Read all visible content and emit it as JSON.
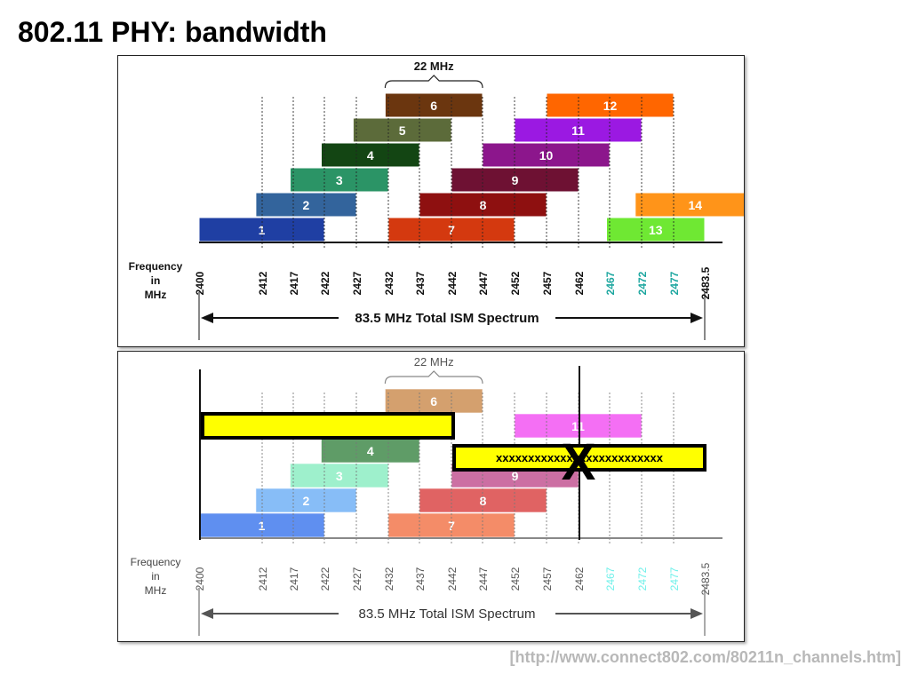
{
  "slide": {
    "title": "802.11 PHY: bandwidth",
    "source": "[http://www.connect802.com/80211n_channels.htm]"
  },
  "diagram": {
    "bandwidth_label": "22 MHz",
    "frequency_label_lines": [
      "Frequency",
      "in",
      "MHz"
    ],
    "spectrum_label": "83.5 MHz Total ISM Spectrum",
    "center_frequencies": [
      "2400",
      "2412",
      "2417",
      "2422",
      "2427",
      "2432",
      "2437",
      "2442",
      "2447",
      "2452",
      "2457",
      "2462",
      "2467",
      "2472",
      "2477",
      "2483.5"
    ],
    "highlight_ticks": [
      "2467",
      "2472",
      "2477"
    ],
    "highlight_tick_color": "#1ea7a0",
    "channels": [
      {
        "label": "1",
        "color": "#1f3fa3"
      },
      {
        "label": "2",
        "color": "#33649c"
      },
      {
        "label": "3",
        "color": "#2b9466"
      },
      {
        "label": "4",
        "color": "#134513"
      },
      {
        "label": "5",
        "color": "#5c6b3a"
      },
      {
        "label": "6",
        "color": "#6b360f"
      },
      {
        "label": "7",
        "color": "#d4390f"
      },
      {
        "label": "8",
        "color": "#8e1010"
      },
      {
        "label": "9",
        "color": "#6e1133"
      },
      {
        "label": "10",
        "color": "#8c168c"
      },
      {
        "label": "11",
        "color": "#9b19e2"
      },
      {
        "label": "12",
        "color": "#ff6600"
      },
      {
        "label": "13",
        "color": "#6fe833"
      },
      {
        "label": "14",
        "color": "#ff9419"
      }
    ],
    "bottom_panel": {
      "channels": [
        {
          "label": "1",
          "color": "#5f8ff0"
        },
        {
          "label": "2",
          "color": "#87bdf7"
        },
        {
          "label": "3",
          "color": "#9ef0cc"
        },
        {
          "label": "4",
          "color": "#5f9c67"
        },
        {
          "label": "6",
          "color": "#d4a06e"
        },
        {
          "label": "7",
          "color": "#f48c68"
        },
        {
          "label": "8",
          "color": "#e06363"
        },
        {
          "label": "9",
          "color": "#cc6fa3"
        },
        {
          "label": "11",
          "color": "#f46ff4"
        }
      ],
      "highlight_tick_color": "#6ff0ea",
      "overlay_bar_fill": "#ffff00",
      "overlay_text": "xxxxxxxxxxxxxxxxxxxxxxxxxx",
      "cross_mark": "X"
    }
  }
}
